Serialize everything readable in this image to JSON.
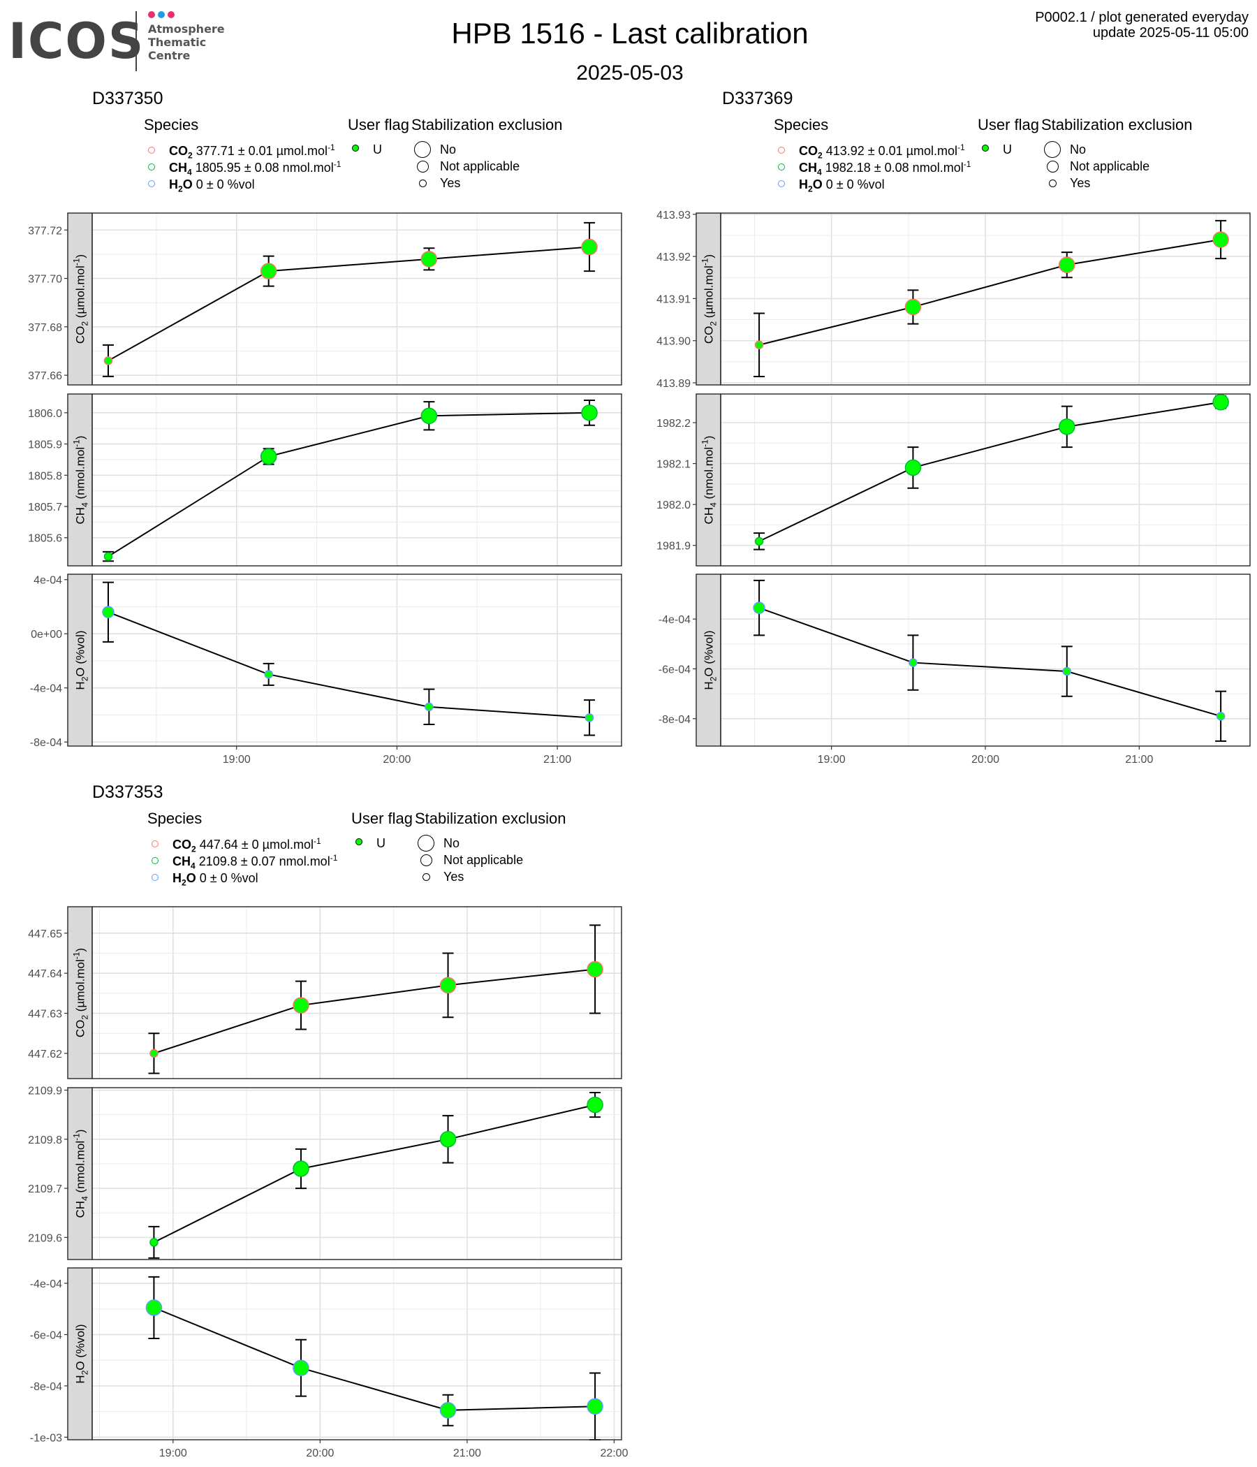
{
  "header": {
    "logo_text": "ICOS",
    "logo_sub": [
      "Atmosphere",
      "Thematic",
      "Centre"
    ],
    "title": "HPB 1516 - Last calibration",
    "date": "2025-05-03",
    "meta_line1": "P0002.1 / plot generated everyday",
    "meta_line2": "update  2025-05-11 05:00"
  },
  "legend_labels": {
    "species_heading": "Species",
    "user_flag_heading": "User flag",
    "stab_heading": "Stabilization exclusion",
    "user_flag_value": "U",
    "stab_values": [
      "No",
      "Not applicable",
      "Yes"
    ]
  },
  "colors": {
    "co2": "#f8766d",
    "ch4": "#00ba38",
    "h2o": "#619cff",
    "point_fill": "#00ff00",
    "strip_fill": "#d9d9d9",
    "grid": "#ebebeb"
  },
  "chart_data": [
    {
      "type": "scatter",
      "cylinder": "D337350",
      "legend": [
        {
          "species": "CO",
          "sub": "2",
          "value": "377.71 ± 0.01 µmol.mol",
          "sup": "-1"
        },
        {
          "species": "CH",
          "sub": "4",
          "value": "1805.95 ± 0.08 nmol.mol",
          "sup": "-1"
        },
        {
          "species": "H",
          "sub": "2",
          "tail": "O",
          "value": "0 ± 0 %vol",
          "sup": ""
        }
      ],
      "x_ticks": [
        "19:00",
        "20:00",
        "21:00"
      ],
      "xlim": [
        18.1,
        21.4
      ],
      "x_tick_values": [
        19,
        20,
        21
      ],
      "x": [
        18.2,
        19.2,
        20.2,
        21.2
      ],
      "facets": [
        {
          "ylabel": "CO2 (µmol.mol-1)",
          "ylim": [
            377.656,
            377.727
          ],
          "y_ticks": [
            377.66,
            377.68,
            377.7,
            377.72
          ],
          "y_tick_labels": [
            "377.66",
            "377.68",
            "377.70",
            "377.72"
          ],
          "y": [
            377.666,
            377.703,
            377.708,
            377.713
          ],
          "err": [
            0.0065,
            0.0062,
            0.0045,
            0.01
          ],
          "stab": [
            "Yes",
            "No",
            "No",
            "No"
          ]
        },
        {
          "ylabel": "CH4 (nmol.mol-1)",
          "ylim": [
            1805.51,
            1806.06
          ],
          "y_ticks": [
            1805.6,
            1805.7,
            1805.8,
            1805.9,
            1806.0
          ],
          "y_tick_labels": [
            "1805.6",
            "1805.7",
            "1805.8",
            "1805.9",
            "1806.0"
          ],
          "y": [
            1805.54,
            1805.86,
            1805.99,
            1806.0
          ],
          "err": [
            0.015,
            0.025,
            0.045,
            0.04
          ],
          "stab": [
            "Yes",
            "No",
            "No",
            "No"
          ]
        },
        {
          "ylabel": "H2O (%vol)",
          "ylim": [
            -0.00083,
            0.00044
          ],
          "y_ticks": [
            -0.0008,
            -0.0004,
            0.0,
            0.0004
          ],
          "y_tick_labels": [
            "-8e-04",
            "-4e-04",
            "0e+00",
            "4e-04"
          ],
          "y": [
            0.00016,
            -0.0003,
            -0.00054,
            -0.00062
          ],
          "err": [
            0.00022,
            8e-05,
            0.00013,
            0.00013
          ],
          "stab": [
            "Not applicable",
            "Yes",
            "Yes",
            "Yes"
          ]
        }
      ]
    },
    {
      "type": "scatter",
      "cylinder": "D337369",
      "legend": [
        {
          "species": "CO",
          "sub": "2",
          "value": "413.92 ± 0.01 µmol.mol",
          "sup": "-1"
        },
        {
          "species": "CH",
          "sub": "4",
          "value": "1982.18 ± 0.08 nmol.mol",
          "sup": "-1"
        },
        {
          "species": "H",
          "sub": "2",
          "tail": "O",
          "value": "0 ± 0 %vol",
          "sup": ""
        }
      ],
      "x_ticks": [
        "19:00",
        "20:00",
        "21:00"
      ],
      "xlim": [
        18.28,
        21.72
      ],
      "x_tick_values": [
        19,
        20,
        21
      ],
      "x": [
        18.53,
        19.53,
        20.53,
        21.53
      ],
      "facets": [
        {
          "ylabel": "CO2 (µmol.mol-1)",
          "ylim": [
            413.8895,
            413.9303
          ],
          "y_ticks": [
            413.89,
            413.9,
            413.91,
            413.92,
            413.93
          ],
          "y_tick_labels": [
            "413.89",
            "413.90",
            "413.91",
            "413.92",
            "413.93"
          ],
          "y": [
            413.899,
            413.908,
            413.918,
            413.924
          ],
          "err": [
            0.0075,
            0.004,
            0.003,
            0.0045
          ],
          "stab": [
            "Yes",
            "No",
            "No",
            "No"
          ]
        },
        {
          "ylabel": "CH4 (nmol.mol-1)",
          "ylim": [
            1981.85,
            1982.27
          ],
          "y_ticks": [
            1981.9,
            1982.0,
            1982.1,
            1982.2
          ],
          "y_tick_labels": [
            "1981.9",
            "1982.0",
            "1982.1",
            "1982.2"
          ],
          "y": [
            1981.91,
            1982.09,
            1982.19,
            1982.25
          ],
          "err": [
            0.02,
            0.05,
            0.05,
            0.015
          ],
          "stab": [
            "Yes",
            "No",
            "No",
            "No"
          ]
        },
        {
          "ylabel": "H2O (%vol)",
          "ylim": [
            -0.00091,
            -0.00022
          ],
          "y_ticks": [
            -0.0008,
            -0.0006,
            -0.0004
          ],
          "y_tick_labels": [
            "-8e-04",
            "-6e-04",
            "-4e-04"
          ],
          "y": [
            -0.000355,
            -0.000575,
            -0.00061,
            -0.00079
          ],
          "err": [
            0.00011,
            0.00011,
            0.0001,
            0.0001
          ],
          "stab": [
            "Not applicable",
            "Yes",
            "Yes",
            "Yes"
          ]
        }
      ]
    },
    {
      "type": "scatter",
      "cylinder": "D337353",
      "legend": [
        {
          "species": "CO",
          "sub": "2",
          "value": "447.64 ± 0 µmol.mol",
          "sup": "-1"
        },
        {
          "species": "CH",
          "sub": "4",
          "value": "2109.8 ± 0.07 nmol.mol",
          "sup": "-1"
        },
        {
          "species": "H",
          "sub": "2",
          "tail": "O",
          "value": "0 ± 0 %vol",
          "sup": ""
        }
      ],
      "x_ticks": [
        "19:00",
        "20:00",
        "21:00",
        "22:00"
      ],
      "xlim": [
        18.45,
        22.05
      ],
      "x_tick_values": [
        19,
        20,
        21,
        22
      ],
      "x": [
        18.87,
        19.87,
        20.87,
        21.87
      ],
      "facets": [
        {
          "ylabel": "CO2 (µmol.mol-1)",
          "ylim": [
            447.6137,
            447.6566
          ],
          "y_ticks": [
            447.62,
            447.63,
            447.64,
            447.65
          ],
          "y_tick_labels": [
            "447.62",
            "447.63",
            "447.64",
            "447.65"
          ],
          "y": [
            447.62,
            447.632,
            447.637,
            447.641
          ],
          "err": [
            0.005,
            0.006,
            0.008,
            0.011
          ],
          "stab": [
            "Yes",
            "No",
            "No",
            "No"
          ]
        },
        {
          "ylabel": "CH4 (nmol.mol-1)",
          "ylim": [
            2109.555,
            2109.905
          ],
          "y_ticks": [
            2109.6,
            2109.7,
            2109.8,
            2109.9
          ],
          "y_tick_labels": [
            "2109.6",
            "2109.7",
            "2109.8",
            "2109.9"
          ],
          "y": [
            2109.59,
            2109.74,
            2109.8,
            2109.87
          ],
          "err": [
            0.032,
            0.04,
            0.048,
            0.025
          ],
          "stab": [
            "Yes",
            "No",
            "No",
            "No"
          ]
        },
        {
          "ylabel": "H2O (%vol)",
          "ylim": [
            -0.00101,
            -0.00034
          ],
          "y_ticks": [
            -0.001,
            -0.0008,
            -0.0006,
            -0.0004
          ],
          "y_tick_labels": [
            "-1e-03",
            "-8e-04",
            "-6e-04",
            "-4e-04"
          ],
          "y": [
            -0.000495,
            -0.00073,
            -0.000895,
            -0.00088
          ],
          "err": [
            0.00012,
            0.00011,
            6e-05,
            0.00013
          ],
          "stab": [
            "No",
            "No",
            "No",
            "No"
          ]
        }
      ]
    }
  ]
}
